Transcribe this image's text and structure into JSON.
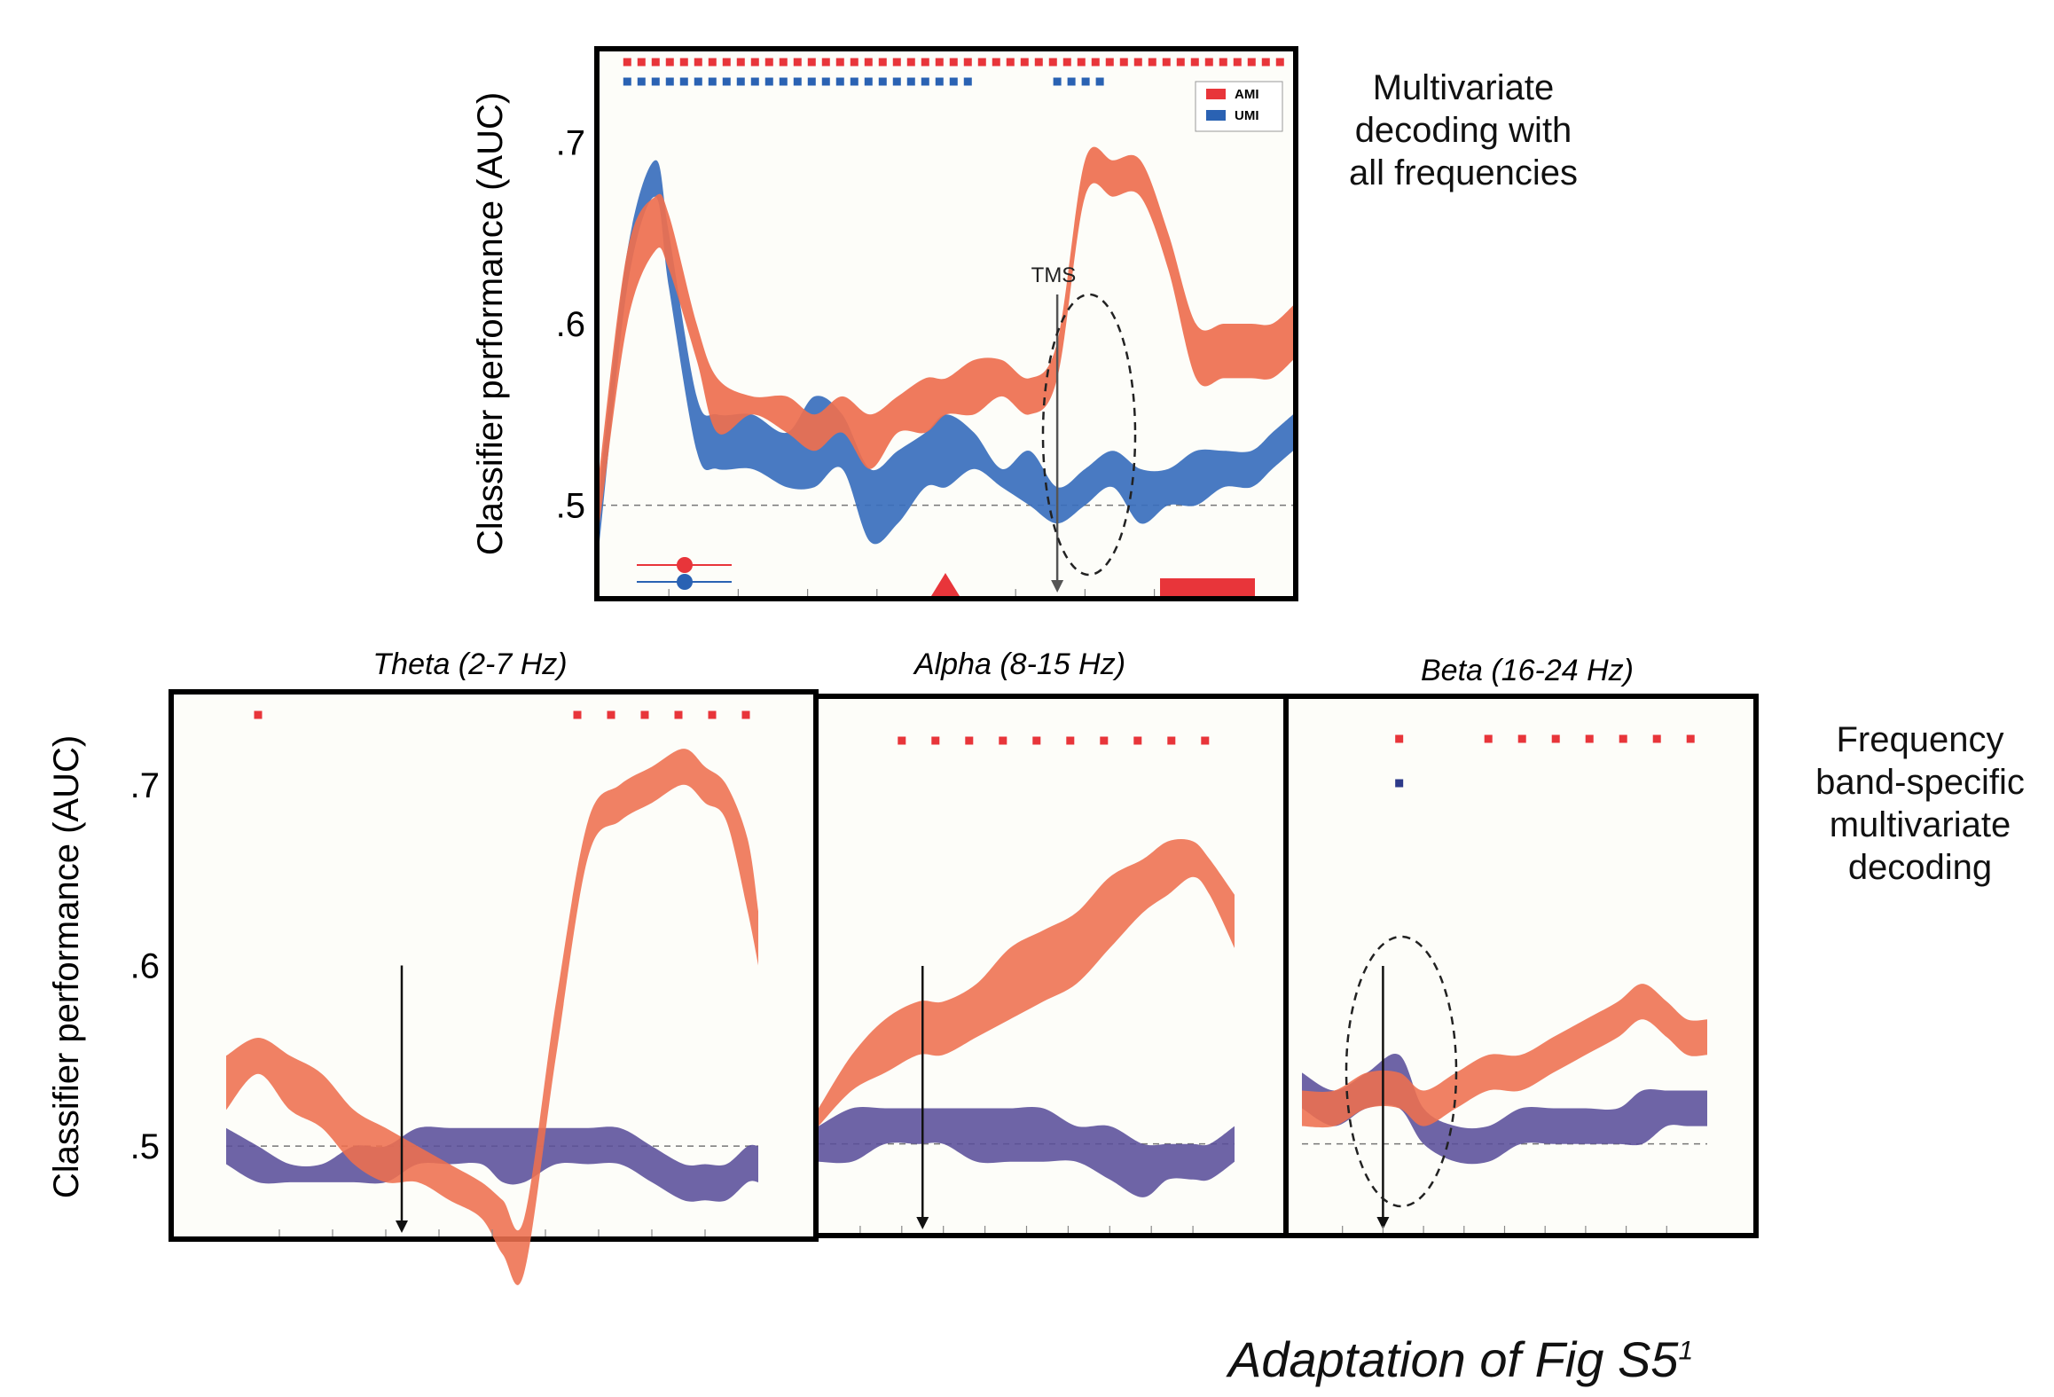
{
  "colors": {
    "ami": "#ee6f4f",
    "umi": "#3a6fbd",
    "umi_band": "#5a4f9a",
    "sig_red": "#e8353a",
    "sig_blue": "#2a62b3",
    "frame": "#000000",
    "panel_bg": "#fdfdf9"
  },
  "notes": {
    "top": [
      "Multivariate",
      "decoding with",
      "all frequencies"
    ],
    "bottom": [
      "Frequency",
      "band-specific",
      "multivariate",
      "decoding"
    ]
  },
  "caption": {
    "text": "Adaptation of Fig S5",
    "superscript": "1"
  },
  "chart_data": [
    {
      "type": "area",
      "panel": "top",
      "title": "",
      "ylabel": "Classifier performance (AUC)",
      "xlabel": "",
      "ylim": [
        0.45,
        0.75
      ],
      "yticks": [
        ".5",
        ".6",
        ".7"
      ],
      "chance_level": 0.5,
      "x": [
        0,
        0.04,
        0.08,
        0.1,
        0.14,
        0.17,
        0.22,
        0.27,
        0.31,
        0.35,
        0.39,
        0.43,
        0.47,
        0.5,
        0.54,
        0.58,
        0.62,
        0.66,
        0.7,
        0.74,
        0.78,
        0.82,
        0.86,
        0.9,
        0.94,
        0.97,
        1.0
      ],
      "series": [
        {
          "name": "AMI",
          "lower": [
            0.49,
            0.6,
            0.64,
            0.63,
            0.58,
            0.54,
            0.55,
            0.54,
            0.53,
            0.54,
            0.52,
            0.54,
            0.54,
            0.55,
            0.55,
            0.56,
            0.55,
            0.57,
            0.67,
            0.67,
            0.67,
            0.63,
            0.57,
            0.57,
            0.57,
            0.57,
            0.58
          ],
          "upper": [
            0.52,
            0.64,
            0.67,
            0.66,
            0.6,
            0.57,
            0.56,
            0.56,
            0.55,
            0.56,
            0.55,
            0.56,
            0.57,
            0.57,
            0.58,
            0.58,
            0.57,
            0.59,
            0.69,
            0.69,
            0.69,
            0.65,
            0.6,
            0.6,
            0.6,
            0.6,
            0.61
          ]
        },
        {
          "name": "UMI",
          "lower": [
            0.48,
            0.62,
            0.67,
            0.62,
            0.53,
            0.52,
            0.52,
            0.51,
            0.51,
            0.52,
            0.48,
            0.49,
            0.51,
            0.51,
            0.52,
            0.51,
            0.5,
            0.49,
            0.5,
            0.51,
            0.49,
            0.5,
            0.5,
            0.51,
            0.51,
            0.52,
            0.53
          ],
          "upper": [
            0.51,
            0.64,
            0.69,
            0.65,
            0.56,
            0.55,
            0.55,
            0.54,
            0.56,
            0.55,
            0.52,
            0.53,
            0.54,
            0.55,
            0.54,
            0.52,
            0.53,
            0.51,
            0.52,
            0.53,
            0.52,
            0.52,
            0.53,
            0.53,
            0.53,
            0.54,
            0.55
          ]
        }
      ],
      "legend": {
        "entries": [
          "AMI",
          "UMI"
        ],
        "placement": "top-right"
      },
      "annotations": {
        "event_label": "TMS",
        "event_x": 0.66
      },
      "significance": {
        "AMI": [
          [
            0.04,
            1.0
          ]
        ],
        "UMI": [
          [
            0.04,
            0.54
          ],
          [
            0.66,
            0.74
          ]
        ]
      }
    },
    {
      "type": "area",
      "panel": "theta",
      "title": "Theta (2-7 Hz)",
      "ylabel": "Classifier performance (AUC)",
      "ylim": [
        0.45,
        0.75
      ],
      "yticks": [
        ".5",
        ".6",
        ".7"
      ],
      "event_x": 0.33,
      "x": [
        0,
        0.06,
        0.12,
        0.18,
        0.24,
        0.3,
        0.36,
        0.42,
        0.48,
        0.52,
        0.56,
        0.62,
        0.68,
        0.74,
        0.8,
        0.86,
        0.9,
        0.94,
        0.98,
        1.0
      ],
      "series": [
        {
          "name": "AMI",
          "lower": [
            0.52,
            0.54,
            0.52,
            0.51,
            0.49,
            0.48,
            0.48,
            0.47,
            0.46,
            0.44,
            0.43,
            0.55,
            0.66,
            0.68,
            0.69,
            0.7,
            0.69,
            0.68,
            0.63,
            0.6
          ],
          "upper": [
            0.55,
            0.56,
            0.55,
            0.54,
            0.52,
            0.51,
            0.5,
            0.49,
            0.48,
            0.47,
            0.46,
            0.58,
            0.68,
            0.7,
            0.71,
            0.72,
            0.71,
            0.7,
            0.67,
            0.63
          ]
        },
        {
          "name": "",
          "lower": [
            0.49,
            0.48,
            0.48,
            0.48,
            0.48,
            0.48,
            0.49,
            0.49,
            0.49,
            0.48,
            0.48,
            0.49,
            0.49,
            0.49,
            0.48,
            0.47,
            0.47,
            0.47,
            0.48,
            0.48
          ],
          "upper": [
            0.51,
            0.5,
            0.49,
            0.49,
            0.5,
            0.5,
            0.51,
            0.51,
            0.51,
            0.51,
            0.51,
            0.51,
            0.51,
            0.51,
            0.5,
            0.49,
            0.49,
            0.49,
            0.5,
            0.5
          ]
        }
      ],
      "significance": {
        "AMI": [
          [
            0.06,
            0.08
          ],
          [
            0.66,
            1.0
          ]
        ]
      }
    },
    {
      "type": "area",
      "panel": "alpha",
      "title": "Alpha (8-15 Hz)",
      "ylim": [
        0.45,
        0.75
      ],
      "event_x": 0.25,
      "x": [
        0,
        0.08,
        0.16,
        0.24,
        0.3,
        0.38,
        0.46,
        0.54,
        0.62,
        0.7,
        0.78,
        0.84,
        0.9,
        0.94,
        1.0
      ],
      "series": [
        {
          "name": "AMI",
          "lower": [
            0.51,
            0.53,
            0.54,
            0.55,
            0.55,
            0.56,
            0.57,
            0.58,
            0.59,
            0.61,
            0.63,
            0.64,
            0.65,
            0.64,
            0.61
          ],
          "upper": [
            0.52,
            0.55,
            0.57,
            0.58,
            0.58,
            0.59,
            0.61,
            0.62,
            0.63,
            0.65,
            0.66,
            0.67,
            0.67,
            0.66,
            0.64
          ]
        },
        {
          "name": "",
          "lower": [
            0.49,
            0.49,
            0.5,
            0.5,
            0.5,
            0.49,
            0.49,
            0.49,
            0.49,
            0.48,
            0.47,
            0.48,
            0.48,
            0.48,
            0.49
          ],
          "upper": [
            0.51,
            0.52,
            0.52,
            0.52,
            0.52,
            0.52,
            0.52,
            0.52,
            0.51,
            0.51,
            0.5,
            0.5,
            0.5,
            0.5,
            0.51
          ]
        }
      ],
      "significance": {
        "AMI": [
          [
            0.2,
            1.0
          ]
        ]
      }
    },
    {
      "type": "area",
      "panel": "beta",
      "title": "Beta (16-24 Hz)",
      "ylim": [
        0.45,
        0.75
      ],
      "event_x": 0.2,
      "x": [
        0,
        0.08,
        0.16,
        0.24,
        0.3,
        0.38,
        0.46,
        0.54,
        0.62,
        0.7,
        0.78,
        0.84,
        0.9,
        0.95,
        1.0
      ],
      "series": [
        {
          "name": "AMI",
          "lower": [
            0.51,
            0.51,
            0.52,
            0.52,
            0.51,
            0.52,
            0.53,
            0.53,
            0.54,
            0.55,
            0.56,
            0.57,
            0.56,
            0.55,
            0.55
          ],
          "upper": [
            0.53,
            0.53,
            0.54,
            0.54,
            0.53,
            0.54,
            0.55,
            0.55,
            0.56,
            0.57,
            0.58,
            0.59,
            0.58,
            0.57,
            0.57
          ]
        },
        {
          "name": "",
          "lower": [
            0.52,
            0.51,
            0.52,
            0.52,
            0.5,
            0.49,
            0.49,
            0.5,
            0.5,
            0.5,
            0.5,
            0.5,
            0.51,
            0.51,
            0.51
          ],
          "upper": [
            0.54,
            0.53,
            0.54,
            0.55,
            0.52,
            0.51,
            0.51,
            0.52,
            0.52,
            0.52,
            0.52,
            0.53,
            0.53,
            0.53,
            0.53
          ]
        }
      ],
      "significance": {
        "AMI": [
          [
            0.24,
            0.26
          ],
          [
            0.46,
            1.0
          ]
        ],
        "UMI": [
          [
            0.24,
            0.26
          ]
        ]
      }
    }
  ]
}
